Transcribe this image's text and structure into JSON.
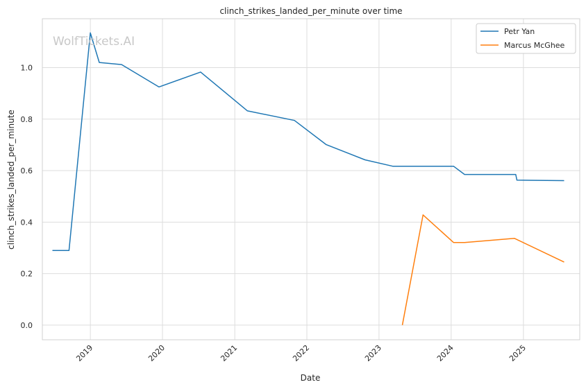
{
  "chart_data": {
    "type": "line",
    "title": "clinch_strikes_landed_per_minute over time",
    "xlabel": "Date",
    "ylabel": "clinch_strikes_landed_per_minute",
    "watermark": "WolfTickets.AI",
    "x_ticks": [
      "2019",
      "2020",
      "2021",
      "2022",
      "2023",
      "2024",
      "2025"
    ],
    "y_ticks": [
      "0.0",
      "0.2",
      "0.4",
      "0.6",
      "0.8",
      "1.0"
    ],
    "xlim": [
      "2018-05-03",
      "2025-10-13"
    ],
    "ylim": [
      -0.057,
      1.19
    ],
    "grid": true,
    "legend_position": "top-right",
    "series": [
      {
        "name": "Petr Yan",
        "color": "#1f77b4",
        "points": [
          [
            "2018-06-23",
            0.29
          ],
          [
            "2018-09-15",
            0.29
          ],
          [
            "2019-01-01",
            1.135
          ],
          [
            "2019-02-15",
            1.02
          ],
          [
            "2019-06-08",
            1.012
          ],
          [
            "2019-12-14",
            0.925
          ],
          [
            "2020-07-12",
            0.983
          ],
          [
            "2021-03-06",
            0.832
          ],
          [
            "2021-10-30",
            0.795
          ],
          [
            "2022-04-09",
            0.701
          ],
          [
            "2022-10-22",
            0.642
          ],
          [
            "2023-03-11",
            0.617
          ],
          [
            "2024-01-13",
            0.617
          ],
          [
            "2024-03-09",
            0.585
          ],
          [
            "2024-11-23",
            0.585
          ],
          [
            "2024-11-29",
            0.563
          ],
          [
            "2025-07-26",
            0.561
          ]
        ]
      },
      {
        "name": "Marcus McGhee",
        "color": "#ff7f0e",
        "points": [
          [
            "2023-04-29",
            0.0
          ],
          [
            "2023-08-12",
            0.428
          ],
          [
            "2024-01-13",
            0.321
          ],
          [
            "2024-03-09",
            0.321
          ],
          [
            "2024-11-16",
            0.337
          ],
          [
            "2025-07-26",
            0.245
          ]
        ]
      }
    ]
  }
}
